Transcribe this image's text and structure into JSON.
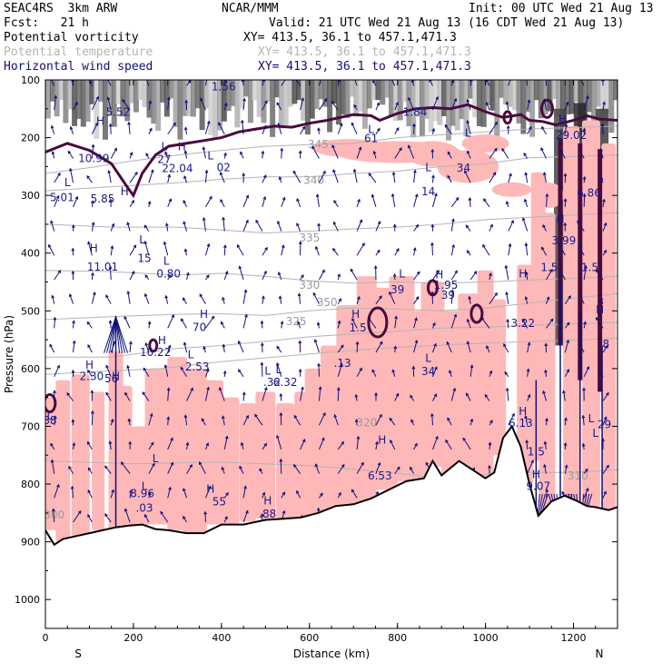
{
  "header": {
    "model": "SEAC4RS  3km ARW",
    "forecast": "Fcst:   21 h",
    "org": "NCAR/MMM",
    "init": "Init: 00 UTC Wed 21 Aug 13",
    "valid": "Valid: 21 UTC Wed 21 Aug 13 (16 CDT Wed 21 Aug 13)"
  },
  "fields": [
    {
      "name": "Potential vorticity",
      "coords": "XY= 413.5, 36.1 to 457.1,471.3",
      "color": "#000000"
    },
    {
      "name": "Potential temperature",
      "coords": "XY= 413.5, 36.1 to 457.1,471.3",
      "color": "#b4b4b4"
    },
    {
      "name": "Horizontal wind speed",
      "coords": "XY= 413.5, 36.1 to 457.1,471.3",
      "color": "#10107a"
    }
  ],
  "chart_data": {
    "type": "cross-section",
    "xlabel": "Distance (km)",
    "ylabel": "Pressure (hPa)",
    "xlim": [
      0,
      1300
    ],
    "ylim": [
      100,
      1050
    ],
    "x_ticks": [
      0,
      200,
      400,
      600,
      800,
      1000,
      1200
    ],
    "y_ticks": [
      100,
      200,
      300,
      400,
      500,
      600,
      700,
      800,
      900,
      1000
    ],
    "y_inverted": true,
    "x_end_labels": [
      "S",
      "N"
    ],
    "colors": {
      "shading": "#ffb8b8",
      "pv_contour": "#4b0a3c",
      "theta": "#b4b4b4",
      "wind": "#10107a",
      "terrain": "#000000"
    },
    "isentropes": [
      {
        "value": "350",
        "x": 640,
        "p": 492
      },
      {
        "value": "345",
        "x": 620,
        "p": 218
      },
      {
        "value": "340",
        "x": 610,
        "p": 280
      },
      {
        "value": "335",
        "x": 600,
        "p": 380
      },
      {
        "value": "330",
        "x": 600,
        "p": 462
      },
      {
        "value": "325",
        "x": 570,
        "p": 525
      },
      {
        "value": "320",
        "x": 730,
        "p": 700
      },
      {
        "value": "310",
        "x": 1210,
        "p": 792
      },
      {
        "value": "300",
        "x": 20,
        "p": 860
      }
    ],
    "terrain": [
      [
        0,
        880
      ],
      [
        20,
        905
      ],
      [
        40,
        895
      ],
      [
        70,
        890
      ],
      [
        100,
        885
      ],
      [
        130,
        880
      ],
      [
        160,
        875
      ],
      [
        190,
        872
      ],
      [
        220,
        870
      ],
      [
        250,
        878
      ],
      [
        280,
        880
      ],
      [
        320,
        885
      ],
      [
        360,
        885
      ],
      [
        400,
        870
      ],
      [
        450,
        870
      ],
      [
        500,
        862
      ],
      [
        540,
        860
      ],
      [
        580,
        858
      ],
      [
        620,
        850
      ],
      [
        660,
        838
      ],
      [
        700,
        835
      ],
      [
        740,
        825
      ],
      [
        780,
        810
      ],
      [
        820,
        795
      ],
      [
        860,
        790
      ],
      [
        880,
        760
      ],
      [
        900,
        785
      ],
      [
        940,
        760
      ],
      [
        980,
        780
      ],
      [
        1000,
        790
      ],
      [
        1020,
        780
      ],
      [
        1040,
        720
      ],
      [
        1060,
        700
      ],
      [
        1080,
        735
      ],
      [
        1100,
        800
      ],
      [
        1120,
        855
      ],
      [
        1150,
        830
      ],
      [
        1180,
        820
      ],
      [
        1210,
        830
      ],
      [
        1230,
        838
      ],
      [
        1250,
        840
      ],
      [
        1280,
        845
      ],
      [
        1300,
        840
      ]
    ],
    "annotations": [
      {
        "text": "H",
        "x": 125,
        "p": 178
      },
      {
        "text": "10.99",
        "x": 110,
        "p": 242
      },
      {
        "text": "L",
        "x": 50,
        "p": 284
      },
      {
        "text": "5.01",
        "x": 38,
        "p": 310
      },
      {
        "text": "H",
        "x": 180,
        "p": 300
      },
      {
        "text": "5.85",
        "x": 130,
        "p": 312
      },
      {
        "text": "5.52",
        "x": 165,
        "p": 162
      },
      {
        "text": "1.56",
        "x": 405,
        "p": 118
      },
      {
        "text": "L",
        "x": 270,
        "p": 222
      },
      {
        "text": "27",
        "x": 270,
        "p": 244
      },
      {
        "text": "H",
        "x": 310,
        "p": 222
      },
      {
        "text": "22.04",
        "x": 300,
        "p": 260
      },
      {
        "text": "L",
        "x": 375,
        "p": 238
      },
      {
        "text": "02",
        "x": 405,
        "p": 258
      },
      {
        "text": "L",
        "x": 220,
        "p": 383
      },
      {
        "text": "15",
        "x": 225,
        "p": 415
      },
      {
        "text": "L",
        "x": 275,
        "p": 420
      },
      {
        "text": "0.80",
        "x": 280,
        "p": 442
      },
      {
        "text": "H",
        "x": 110,
        "p": 398
      },
      {
        "text": "11.01",
        "x": 130,
        "p": 430
      },
      {
        "text": "1.84",
        "x": 840,
        "p": 162
      },
      {
        "text": "L",
        "x": 740,
        "p": 192
      },
      {
        "text": "61",
        "x": 740,
        "p": 208
      },
      {
        "text": "L",
        "x": 870,
        "p": 258
      },
      {
        "text": "14",
        "x": 870,
        "p": 300
      },
      {
        "text": "L",
        "x": 960,
        "p": 198
      },
      {
        "text": "34",
        "x": 950,
        "p": 259
      },
      {
        "text": "L",
        "x": 810,
        "p": 442
      },
      {
        "text": "39",
        "x": 800,
        "p": 470
      },
      {
        "text": "H",
        "x": 895,
        "p": 444
      },
      {
        "text": "1.95",
        "x": 910,
        "p": 462
      },
      {
        "text": "39",
        "x": 915,
        "p": 479
      },
      {
        "text": "H",
        "x": 705,
        "p": 512
      },
      {
        "text": "1.5",
        "x": 710,
        "p": 536
      },
      {
        "text": ".13",
        "x": 675,
        "p": 597
      },
      {
        "text": "H",
        "x": 360,
        "p": 512
      },
      {
        "text": "70",
        "x": 350,
        "p": 535
      },
      {
        "text": "L",
        "x": 870,
        "p": 588
      },
      {
        "text": "34",
        "x": 870,
        "p": 611
      },
      {
        "text": "H",
        "x": 1085,
        "p": 442
      },
      {
        "text": "3.22",
        "x": 1085,
        "p": 528
      },
      {
        "text": "1.5",
        "x": 1145,
        "p": 431
      },
      {
        "text": "H",
        "x": 1170,
        "p": 348
      },
      {
        "text": "3.99",
        "x": 1178,
        "p": 385
      },
      {
        "text": "H",
        "x": 1175,
        "p": 175
      },
      {
        "text": "29.02",
        "x": 1195,
        "p": 202
      },
      {
        "text": "6.86",
        "x": 1235,
        "p": 302
      },
      {
        "text": "1.5",
        "x": 1237,
        "p": 431
      },
      {
        "text": "H",
        "x": 1260,
        "p": 504
      },
      {
        "text": ".8",
        "x": 1270,
        "p": 564
      },
      {
        "text": "L",
        "x": 1250,
        "p": 718
      },
      {
        "text": "L",
        "x": 1240,
        "p": 693
      },
      {
        "text": "29",
        "x": 1270,
        "p": 703
      },
      {
        "text": "1.5",
        "x": 1115,
        "p": 750
      },
      {
        "text": "H",
        "x": 1085,
        "p": 680
      },
      {
        "text": "6.13",
        "x": 1080,
        "p": 701
      },
      {
        "text": "H",
        "x": 1115,
        "p": 790
      },
      {
        "text": "9.07",
        "x": 1120,
        "p": 810
      },
      {
        "text": "H",
        "x": 765,
        "p": 730
      },
      {
        "text": "6.53",
        "x": 760,
        "p": 792
      },
      {
        "text": "H",
        "x": 100,
        "p": 600
      },
      {
        "text": "2.30",
        "x": 105,
        "p": 620
      },
      {
        "text": "H",
        "x": 160,
        "p": 620
      },
      {
        "text": "56",
        "x": 150,
        "p": 624
      },
      {
        "text": "L",
        "x": 10,
        "p": 688
      },
      {
        "text": "88",
        "x": 10,
        "p": 696
      },
      {
        "text": "H",
        "x": 265,
        "p": 558
      },
      {
        "text": "10.22",
        "x": 250,
        "p": 578
      },
      {
        "text": "L",
        "x": 330,
        "p": 582
      },
      {
        "text": "2.53",
        "x": 345,
        "p": 603
      },
      {
        "text": "L",
        "x": 505,
        "p": 610
      },
      {
        "text": "L",
        "x": 530,
        "p": 608
      },
      {
        "text": ".32",
        "x": 515,
        "p": 630
      },
      {
        "text": "6.32",
        "x": 545,
        "p": 630
      },
      {
        "text": "L",
        "x": 250,
        "p": 762
      },
      {
        "text": "L",
        "x": 225,
        "p": 810
      },
      {
        "text": "8.96",
        "x": 220,
        "p": 823
      },
      {
        "text": ".03",
        "x": 225,
        "p": 848
      },
      {
        "text": "H",
        "x": 375,
        "p": 815
      },
      {
        "text": "55",
        "x": 395,
        "p": 837
      },
      {
        "text": "H",
        "x": 505,
        "p": 835
      },
      {
        "text": ".88",
        "x": 505,
        "p": 858
      }
    ],
    "wind_arrows": [
      {
        "x": 160,
        "p_top": 510,
        "p_bot": 900,
        "dir": "up"
      },
      {
        "x": 1115,
        "p_top": 620,
        "p_bot": 880,
        "dir": "down"
      },
      {
        "x": 1170,
        "p_top": 450,
        "p_bot": 880,
        "dir": "down"
      },
      {
        "x": 1215,
        "p_top": 500,
        "p_bot": 880,
        "dir": "down"
      },
      {
        "x": 1265,
        "p_top": 560,
        "p_bot": 920,
        "dir": "down"
      }
    ]
  }
}
